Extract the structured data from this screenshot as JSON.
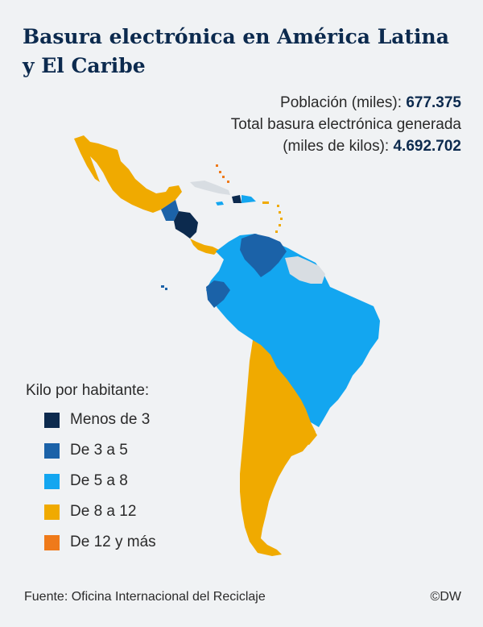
{
  "title": {
    "line1": "Basura electrónica en América Latina",
    "line2": "y El Caribe"
  },
  "stats": {
    "population_label": "Población (miles): ",
    "population_value": "677.375",
    "total_label_line1": "Total basura electrónica generada",
    "total_label_line2": "(miles de kilos): ",
    "total_value": "4.692.702"
  },
  "legend": {
    "title": "Kilo por habitante:",
    "items": [
      {
        "label": "Menos de 3",
        "color": "#0c2a4e"
      },
      {
        "label": "De 3 a 5",
        "color": "#1b62a8"
      },
      {
        "label": "De 5 a 8",
        "color": "#13a6f0"
      },
      {
        "label": "De 8 a 12",
        "color": "#f0aa00"
      },
      {
        "label": "De 12 y más",
        "color": "#ef7a1a"
      }
    ]
  },
  "colors": {
    "no_data": "#d8dde2",
    "background": "#f0f2f4",
    "title": "#0c2a4e"
  },
  "footer": {
    "source": "Fuente: Oficina Internacional del Reciclaje",
    "credit": "©DW"
  }
}
